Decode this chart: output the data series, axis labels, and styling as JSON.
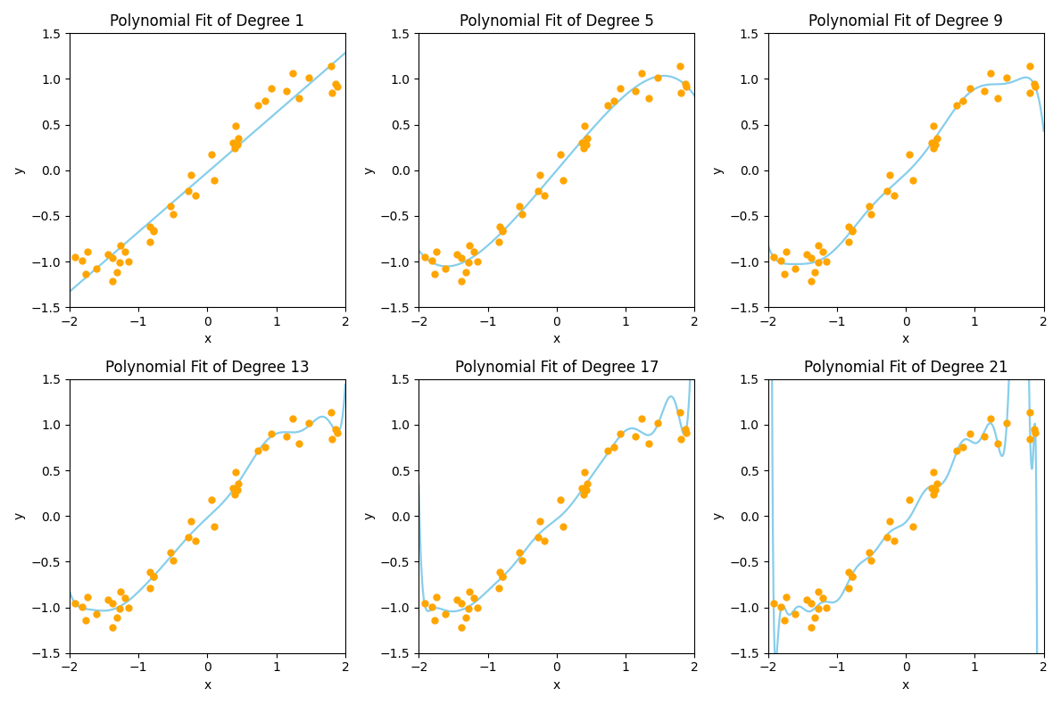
{
  "degrees": [
    1,
    5,
    9,
    13,
    17,
    21
  ],
  "seed": 42,
  "n_points": 40,
  "x_range": [
    -2.0,
    2.0
  ],
  "y_lim": [
    -1.5,
    1.5
  ],
  "scatter_color": "orange",
  "line_color": "#87CEEB",
  "scatter_size": 25,
  "line_width": 1.6,
  "xlabel": "x",
  "ylabel": "y",
  "title_template": "Polynomial Fit of Degree ",
  "noise_std": 0.12,
  "figsize": [
    11.89,
    7.9
  ],
  "dpi": 100
}
